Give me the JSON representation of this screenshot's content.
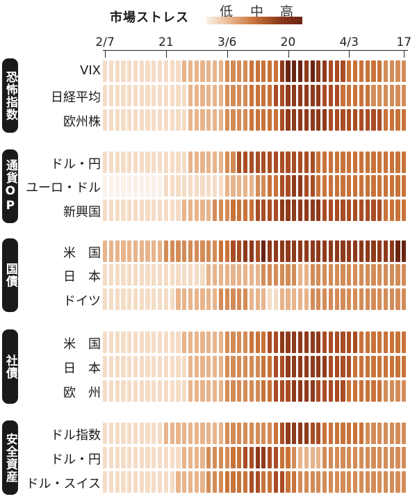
{
  "legend": {
    "title": "市場ストレス",
    "low": "低",
    "mid": "中",
    "high": "高"
  },
  "colors": {
    "scale": [
      "#faf1e8",
      "#f4dcc6",
      "#e7b48c",
      "#d38c58",
      "#c8733a",
      "#a94d25",
      "#8e3a1c",
      "#6a2413"
    ]
  },
  "chart_data": {
    "type": "heatmap",
    "x_tick_labels": [
      "2/7",
      "21",
      "3/6",
      "20",
      "4/3",
      "17"
    ],
    "n_days": 50,
    "value_scale": "0 (低) – 7 (高), stress level shown by color",
    "groups": [
      {
        "label": "恐怖指数",
        "rows": [
          {
            "label": "VIX",
            "values": [
              1,
              1,
              1,
              1,
              1,
              1,
              1,
              1,
              1,
              1,
              1,
              1,
              1,
              2,
              2,
              2,
              2,
              2,
              2,
              2,
              3,
              3,
              3,
              3,
              4,
              4,
              4,
              4,
              4,
              6,
              7,
              7,
              7,
              6,
              7,
              6,
              6,
              5,
              5,
              5,
              4,
              4,
              4,
              4,
              4,
              4,
              3,
              3,
              3,
              3
            ]
          },
          {
            "label": "日経平均",
            "values": [
              1,
              1,
              1,
              1,
              1,
              1,
              1,
              1,
              1,
              1,
              1,
              1,
              1,
              1,
              2,
              2,
              2,
              2,
              2,
              2,
              3,
              3,
              3,
              3,
              4,
              4,
              4,
              4,
              5,
              5,
              6,
              6,
              6,
              6,
              6,
              6,
              5,
              5,
              5,
              4,
              4,
              4,
              4,
              4,
              3,
              3,
              3,
              3,
              3,
              3
            ]
          },
          {
            "label": "欧州株",
            "values": [
              1,
              1,
              1,
              1,
              1,
              1,
              1,
              1,
              1,
              1,
              1,
              1,
              1,
              1,
              2,
              2,
              2,
              2,
              2,
              2,
              3,
              3,
              3,
              3,
              4,
              4,
              4,
              4,
              4,
              5,
              6,
              6,
              6,
              6,
              6,
              6,
              6,
              5,
              5,
              5,
              5,
              5,
              5,
              5,
              5,
              5,
              4,
              4,
              4,
              4
            ]
          }
        ]
      },
      {
        "label": "通貨OP",
        "rows": [
          {
            "label": "ドル・円",
            "values": [
              1,
              1,
              1,
              1,
              1,
              1,
              1,
              1,
              1,
              1,
              1,
              1,
              1,
              1,
              2,
              2,
              2,
              2,
              2,
              2,
              3,
              3,
              5,
              5,
              5,
              5,
              5,
              5,
              5,
              5,
              5,
              5,
              5,
              5,
              5,
              4,
              4,
              4,
              4,
              4,
              4,
              4,
              4,
              4,
              4,
              4,
              4,
              4,
              4,
              4
            ]
          },
          {
            "label": "ユーロ・ドル",
            "values": [
              0,
              0,
              0,
              0,
              0,
              0,
              0,
              0,
              0,
              0,
              1,
              1,
              1,
              1,
              1,
              1,
              1,
              1,
              1,
              1,
              2,
              2,
              2,
              2,
              2,
              3,
              3,
              4,
              4,
              5,
              5,
              6,
              6,
              5,
              5,
              4,
              4,
              4,
              4,
              4,
              4,
              4,
              4,
              4,
              4,
              4,
              4,
              4,
              4,
              4
            ]
          },
          {
            "label": "新興国",
            "values": [
              1,
              1,
              1,
              1,
              1,
              1,
              1,
              1,
              1,
              1,
              1,
              1,
              1,
              2,
              2,
              2,
              2,
              2,
              3,
              3,
              3,
              4,
              4,
              4,
              4,
              5,
              5,
              5,
              5,
              6,
              6,
              6,
              6,
              6,
              6,
              6,
              5,
              5,
              5,
              5,
              5,
              5,
              5,
              5,
              5,
              5,
              4,
              4,
              4,
              4
            ]
          }
        ]
      },
      {
        "label": "国債",
        "rows": [
          {
            "label": "米　国",
            "values": [
              2,
              2,
              2,
              2,
              2,
              2,
              2,
              2,
              2,
              2,
              3,
              3,
              3,
              3,
              3,
              3,
              3,
              3,
              3,
              4,
              4,
              5,
              5,
              6,
              6,
              5,
              7,
              6,
              6,
              6,
              6,
              6,
              6,
              6,
              6,
              6,
              6,
              6,
              6,
              6,
              6,
              6,
              6,
              6,
              6,
              6,
              6,
              6,
              7,
              7
            ]
          },
          {
            "label": "日　本",
            "values": [
              1,
              1,
              1,
              1,
              1,
              1,
              1,
              1,
              1,
              1,
              1,
              1,
              1,
              1,
              1,
              1,
              1,
              2,
              2,
              2,
              2,
              2,
              2,
              2,
              2,
              2,
              3,
              3,
              3,
              3,
              3,
              3,
              2,
              2,
              3,
              3,
              3,
              3,
              3,
              3,
              3,
              3,
              3,
              3,
              3,
              3,
              3,
              3,
              3,
              3
            ]
          },
          {
            "label": "ドイツ",
            "values": [
              1,
              1,
              1,
              1,
              1,
              1,
              1,
              1,
              1,
              1,
              1,
              1,
              2,
              2,
              2,
              2,
              2,
              2,
              2,
              3,
              3,
              3,
              3,
              3,
              2,
              2,
              2,
              1,
              1,
              2,
              2,
              2,
              2,
              2,
              3,
              3,
              3,
              3,
              3,
              3,
              3,
              3,
              3,
              3,
              3,
              3,
              3,
              3,
              3,
              3
            ]
          }
        ]
      },
      {
        "label": "社債",
        "rows": [
          {
            "label": "米　国",
            "values": [
              1,
              1,
              1,
              1,
              1,
              1,
              1,
              1,
              1,
              1,
              1,
              1,
              1,
              2,
              2,
              2,
              2,
              2,
              2,
              2,
              3,
              3,
              3,
              3,
              4,
              4,
              4,
              5,
              5,
              6,
              6,
              6,
              6,
              6,
              6,
              6,
              5,
              5,
              5,
              5,
              5,
              5,
              4,
              4,
              4,
              4,
              4,
              4,
              4,
              4
            ]
          },
          {
            "label": "日　本",
            "values": [
              1,
              1,
              1,
              1,
              1,
              1,
              1,
              1,
              1,
              1,
              1,
              1,
              1,
              1,
              2,
              2,
              2,
              2,
              2,
              2,
              3,
              3,
              3,
              3,
              3,
              3,
              4,
              4,
              5,
              5,
              6,
              6,
              6,
              6,
              6,
              6,
              6,
              5,
              5,
              5,
              5,
              4,
              4,
              4,
              4,
              4,
              4,
              4,
              4,
              4
            ]
          },
          {
            "label": "欧　州",
            "values": [
              1,
              1,
              1,
              1,
              1,
              1,
              1,
              1,
              1,
              1,
              1,
              1,
              1,
              1,
              2,
              2,
              2,
              2,
              2,
              2,
              3,
              3,
              3,
              3,
              3,
              3,
              4,
              4,
              5,
              5,
              5,
              6,
              6,
              6,
              6,
              5,
              5,
              5,
              5,
              5,
              4,
              4,
              4,
              4,
              4,
              4,
              3,
              3,
              3,
              3
            ]
          }
        ]
      },
      {
        "label": "安全資産",
        "rows": [
          {
            "label": "ドル指数",
            "values": [
              1,
              1,
              1,
              1,
              1,
              1,
              1,
              1,
              1,
              1,
              2,
              2,
              2,
              2,
              2,
              2,
              2,
              2,
              2,
              2,
              3,
              3,
              3,
              3,
              3,
              3,
              3,
              3,
              4,
              5,
              6,
              6,
              6,
              6,
              5,
              5,
              4,
              4,
              4,
              4,
              4,
              4,
              4,
              3,
              3,
              3,
              3,
              3,
              3,
              3
            ]
          },
          {
            "label": "ドル・円",
            "values": [
              1,
              1,
              1,
              1,
              1,
              1,
              1,
              1,
              1,
              1,
              1,
              1,
              1,
              2,
              2,
              2,
              2,
              3,
              3,
              3,
              3,
              4,
              4,
              5,
              5,
              6,
              6,
              5,
              5,
              4,
              4,
              3,
              2,
              2,
              2,
              2,
              3,
              3,
              3,
              3,
              3,
              3,
              3,
              3,
              3,
              3,
              3,
              3,
              3,
              3
            ]
          },
          {
            "label": "ドル・スイス",
            "values": [
              1,
              1,
              1,
              1,
              1,
              1,
              1,
              1,
              1,
              1,
              1,
              1,
              2,
              2,
              2,
              2,
              2,
              3,
              3,
              3,
              4,
              4,
              4,
              4,
              5,
              5,
              4,
              4,
              5,
              5,
              4,
              4,
              3,
              3,
              3,
              3,
              3,
              3,
              3,
              3,
              3,
              3,
              3,
              3,
              3,
              3,
              3,
              3,
              3,
              3
            ]
          }
        ]
      }
    ]
  }
}
